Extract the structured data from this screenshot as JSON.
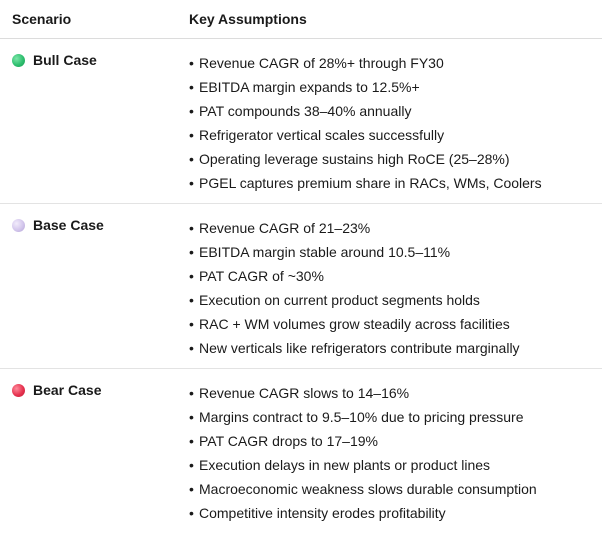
{
  "table": {
    "headers": {
      "scenario": "Scenario",
      "assumptions": "Key Assumptions"
    },
    "rows": [
      {
        "scenario": "Bull Case",
        "dot_color": "#2fbf6f",
        "assumptions": [
          "Revenue CAGR of 28%+ through FY30",
          "EBITDA margin expands to 12.5%+",
          "PAT compounds 38–40% annually",
          "Refrigerator vertical scales successfully",
          "Operating leverage sustains high RoCE (25–28%)",
          "PGEL captures premium share in RACs, WMs, Coolers"
        ]
      },
      {
        "scenario": "Base Case",
        "dot_color": "#d3c6ec",
        "assumptions": [
          "Revenue CAGR of 21–23%",
          "EBITDA margin stable around 10.5–11%",
          "PAT CAGR of ~30%",
          "Execution on current product segments holds",
          "RAC + WM volumes grow steadily across facilities",
          "New verticals like refrigerators contribute marginally"
        ]
      },
      {
        "scenario": "Bear Case",
        "dot_color": "#e6334f",
        "assumptions": [
          "Revenue CAGR slows to 14–16%",
          "Margins contract to 9.5–10% due to pricing pressure",
          "PAT CAGR drops to 17–19%",
          "Execution delays in new plants or product lines",
          "Macroeconomic weakness slows durable consumption",
          "Competitive intensity erodes profitability"
        ]
      }
    ]
  }
}
